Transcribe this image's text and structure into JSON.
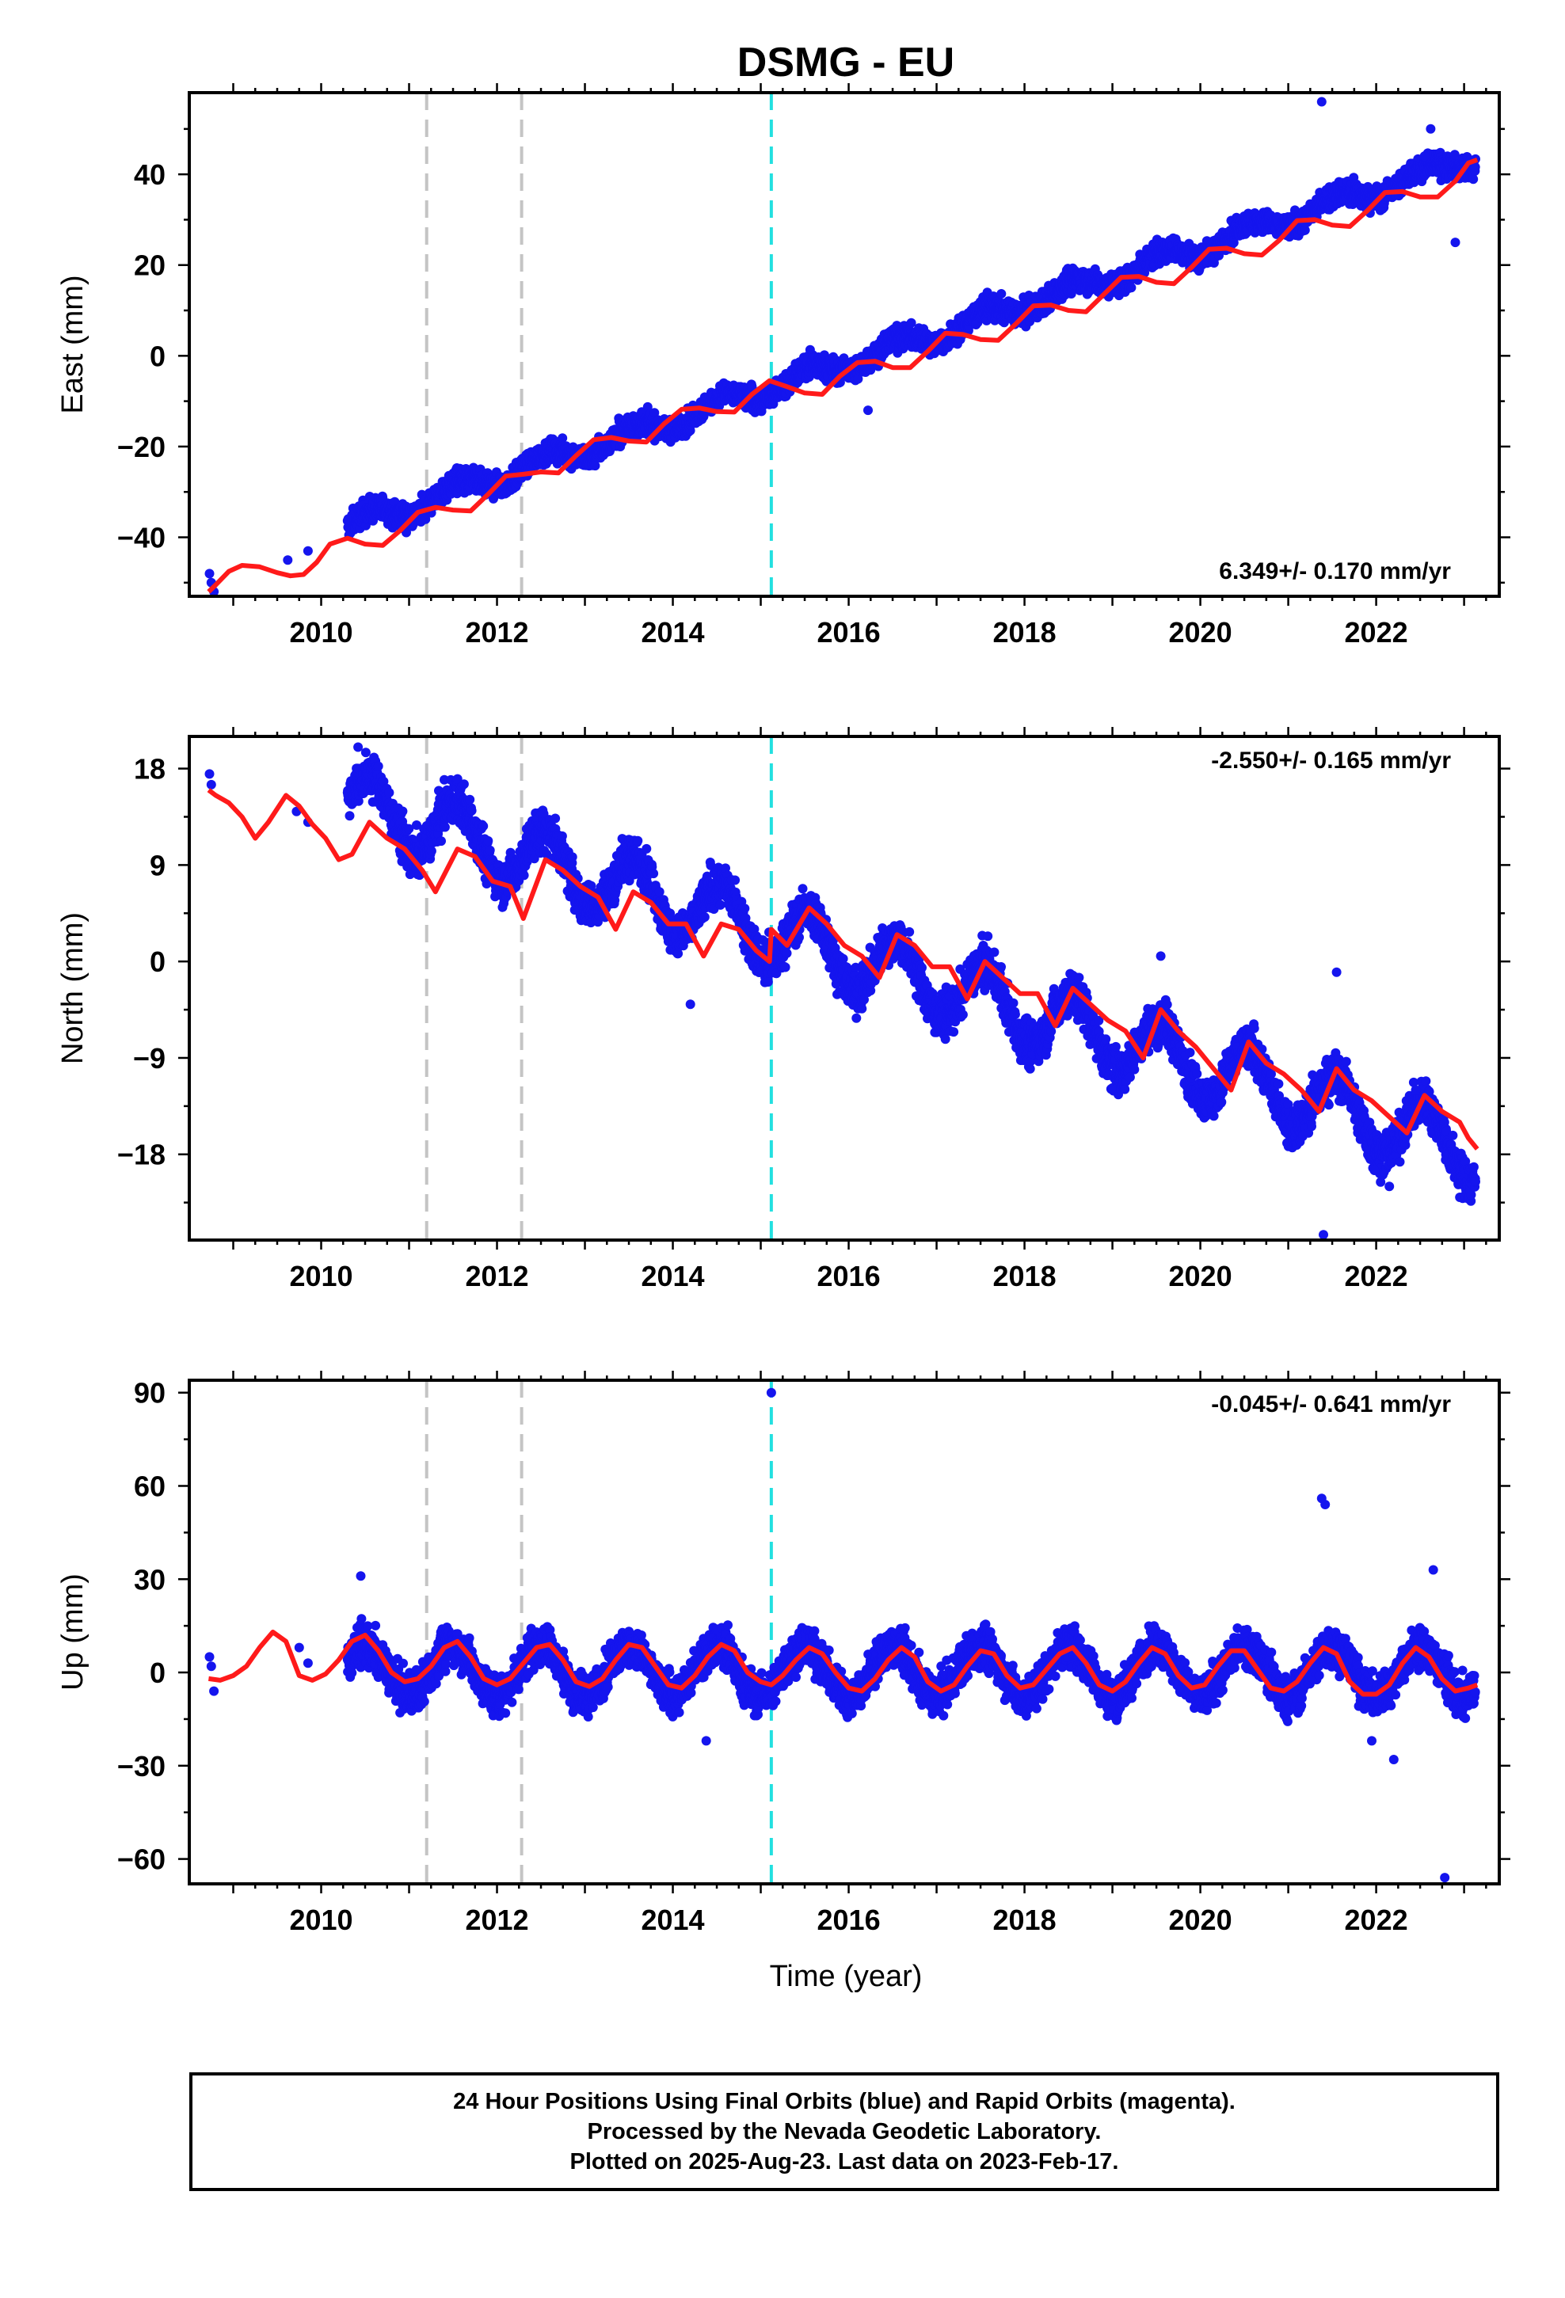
{
  "title": "DSMG - EU",
  "xlabel": "Time (year)",
  "footer": {
    "line1": "24 Hour Positions Using Final Orbits (blue) and Rapid Orbits (magenta).",
    "line2": "Processed by the Nevada Geodetic Laboratory.",
    "line3": "Plotted on 2025-Aug-23. Last data on 2023-Feb-17."
  },
  "chart_data": [
    {
      "type": "scatter",
      "name": "east",
      "ylabel": "East (mm)",
      "rate_label": "6.349+/- 0.170 mm/yr",
      "xlim": [
        2008.5,
        2023.4
      ],
      "ylim": [
        -53,
        58
      ],
      "xticks": [
        2010,
        2012,
        2014,
        2016,
        2018,
        2020,
        2022
      ],
      "yticks": [
        -40,
        -20,
        0,
        20,
        40
      ],
      "ytick_labels": [
        "−40",
        "−20",
        "0",
        "20",
        "40"
      ],
      "data_start": 2010.3,
      "trend": {
        "t0": 2016,
        "y0": -1.5,
        "rate": 6.349
      },
      "seasonal": {
        "amplitude": 2.0,
        "phase_year": 0.55
      },
      "scatter_noise": 1.8,
      "early_points": {
        "x": [
          2008.73,
          2008.75,
          2008.78,
          2009.62,
          2009.85
        ],
        "y": [
          -48,
          -50,
          -52,
          -45,
          -43
        ]
      },
      "outliers": {
        "x": [
          2021.38,
          2022.62,
          2022.9,
          2022.55,
          2016.22
        ],
        "y": [
          56,
          50,
          25,
          44,
          -12
        ]
      },
      "fit": {
        "x": [
          2008.72,
          2008.8,
          2008.95,
          2009.1,
          2009.3,
          2009.5,
          2009.65,
          2009.8,
          2009.95,
          2010.1,
          2010.3,
          2010.5,
          2010.7,
          2010.9,
          2011.1,
          2011.3,
          2011.5,
          2011.7,
          2011.9,
          2012.1,
          2012.3,
          2012.5,
          2012.7,
          2012.9,
          2013.1,
          2013.3,
          2013.5,
          2013.7,
          2013.9,
          2014.1,
          2014.3,
          2014.5,
          2014.7,
          2014.9,
          2015.1,
          2015.3,
          2015.5,
          2015.7,
          2015.9,
          2016.1,
          2016.3,
          2016.5,
          2016.7,
          2016.9,
          2017.1,
          2017.3,
          2017.5,
          2017.7,
          2017.9,
          2018.1,
          2018.3,
          2018.5,
          2018.7,
          2018.9,
          2019.1,
          2019.3,
          2019.5,
          2019.7,
          2019.9,
          2020.1,
          2020.3,
          2020.5,
          2020.7,
          2020.9,
          2021.1,
          2021.3,
          2021.5,
          2021.7,
          2021.9,
          2022.1,
          2022.3,
          2022.5,
          2022.7,
          2022.9,
          2023.05,
          2023.15
        ],
        "y": [
          -52,
          -50.5,
          -47.5,
          -46.2,
          -46.5,
          -47.8,
          -48.5,
          -48.2,
          -45.5,
          -41.5,
          -40.2,
          -41.5,
          -41.8,
          -38.5,
          -34.5,
          -33.4,
          -34,
          -34.2,
          -30.5,
          -26.5,
          -26.1,
          -25.6,
          -25.8,
          -22,
          -18.5,
          -18,
          -18.8,
          -19,
          -15,
          -11.8,
          -11.5,
          -12.3,
          -12.4,
          -8.5,
          -5.5,
          -6.8,
          -8.2,
          -8.5,
          -4.5,
          -1.5,
          -1.2,
          -2.6,
          -2.6,
          1,
          5,
          4.7,
          3.6,
          3.4,
          7,
          11,
          11.2,
          10,
          9.7,
          13.5,
          17.3,
          17.5,
          16.2,
          15.9,
          19.5,
          23.5,
          23.7,
          22.5,
          22.2,
          25.5,
          29.8,
          30,
          28.8,
          28.5,
          32,
          36,
          36.2,
          35,
          35,
          38.5,
          42.5,
          43.2
        ]
      },
      "vlines_gray": [
        2011.2,
        2012.28
      ],
      "vlines_cyan": [
        2015.12
      ]
    },
    {
      "type": "scatter",
      "name": "north",
      "ylabel": "North (mm)",
      "rate_label": "-2.550+/- 0.165 mm/yr",
      "xlim": [
        2008.5,
        2023.4
      ],
      "ylim": [
        -26,
        21
      ],
      "xticks": [
        2010,
        2012,
        2014,
        2016,
        2018,
        2020,
        2022
      ],
      "yticks": [
        -18,
        -9,
        0,
        9,
        18
      ],
      "ytick_labels": [
        "−18",
        "−9",
        "0",
        "9",
        "18"
      ],
      "data_start": 2010.3,
      "trend": {
        "t0": 2016,
        "y0": 0.5,
        "rate": -2.55
      },
      "seasonal": {
        "amplitude": 3.0,
        "phase_year": 0.55
      },
      "scatter_noise": 1.4,
      "early_points": {
        "x": [
          2008.73,
          2008.75,
          2009.72,
          2009.85
        ],
        "y": [
          17.5,
          16.5,
          14,
          13
        ]
      },
      "outliers": {
        "x": [
          2010.42,
          2019.55,
          2021.55,
          2021.4,
          2021.98,
          2022.15,
          2022.45,
          2014.2
        ],
        "y": [
          20,
          0.5,
          -1,
          -25.5,
          -19.5,
          -21,
          -12,
          -4
        ]
      },
      "fit": {
        "x": [
          2008.72,
          2008.8,
          2008.95,
          2009.1,
          2009.25,
          2009.4,
          2009.6,
          2009.75,
          2009.9,
          2010.05,
          2010.2,
          2010.35,
          2010.55,
          2010.75,
          2010.95,
          2011.15,
          2011.3,
          2011.55,
          2011.75,
          2011.95,
          2012.15,
          2012.3,
          2012.55,
          2012.75,
          2012.95,
          2013.15,
          2013.35,
          2013.55,
          2013.75,
          2013.95,
          2014.15,
          2014.35,
          2014.55,
          2014.75,
          2014.95,
          2015.1,
          2015.12,
          2015.3,
          2015.55,
          2015.75,
          2015.95,
          2016.15,
          2016.35,
          2016.55,
          2016.75,
          2016.95,
          2017.15,
          2017.35,
          2017.55,
          2017.75,
          2017.95,
          2018.15,
          2018.35,
          2018.55,
          2018.75,
          2018.95,
          2019.15,
          2019.35,
          2019.55,
          2019.75,
          2019.95,
          2020.15,
          2020.35,
          2020.55,
          2020.75,
          2020.95,
          2021.15,
          2021.35,
          2021.55,
          2021.75,
          2021.95,
          2022.15,
          2022.35,
          2022.55,
          2022.75,
          2022.95,
          2023.05,
          2023.15
        ],
        "y": [
          16,
          15.5,
          14.8,
          13.5,
          11.5,
          13,
          15.5,
          14.5,
          12.8,
          11.5,
          9.5,
          10,
          13,
          11.5,
          10.5,
          8.5,
          6.5,
          10.5,
          9.8,
          7.5,
          7,
          4,
          9.5,
          8.5,
          7,
          6,
          3,
          6.5,
          5.5,
          3.5,
          3.5,
          0.5,
          3.5,
          3,
          1,
          0,
          3,
          1.5,
          5,
          3.5,
          1.5,
          0.5,
          -1.5,
          2.5,
          1.5,
          -0.5,
          -0.5,
          -3.5,
          0,
          -1.5,
          -3,
          -3,
          -6,
          -2.5,
          -4,
          -5.5,
          -6.5,
          -9,
          -4.5,
          -6.5,
          -8,
          -10,
          -12,
          -7.5,
          -9.5,
          -10.5,
          -12,
          -14,
          -10,
          -12,
          -13,
          -14.5,
          -16,
          -12.5,
          -14,
          -15,
          -16.5,
          -17.5
        ]
      },
      "vlines_gray": [
        2011.2,
        2012.28
      ],
      "vlines_cyan": [
        2015.12
      ]
    },
    {
      "type": "scatter",
      "name": "up",
      "ylabel": "Up (mm)",
      "rate_label": "-0.045+/- 0.641 mm/yr",
      "xlim": [
        2008.5,
        2023.4
      ],
      "ylim": [
        -68,
        94
      ],
      "xticks": [
        2010,
        2012,
        2014,
        2016,
        2018,
        2020,
        2022
      ],
      "yticks": [
        -60,
        -30,
        0,
        30,
        60,
        90
      ],
      "ytick_labels": [
        "−60",
        "−30",
        "0",
        "30",
        "60",
        "90"
      ],
      "data_start": 2010.3,
      "trend": {
        "t0": 2016,
        "y0": 0.5,
        "rate": -0.045
      },
      "seasonal": {
        "amplitude": 8.0,
        "phase_year": 0.5
      },
      "scatter_noise": 4.5,
      "early_points": {
        "x": [
          2008.73,
          2008.75,
          2008.78,
          2009.75,
          2009.85
        ],
        "y": [
          5,
          2,
          -6,
          8,
          3
        ]
      },
      "outliers": {
        "x": [
          2015.12,
          2021.38,
          2021.42,
          2022.78,
          2014.38,
          2022.2,
          2021.95,
          2022.65,
          2010.45
        ],
        "y": [
          90,
          56,
          54,
          -66,
          -22,
          -28,
          -22,
          33,
          31
        ]
      },
      "fit": {
        "x": [
          2008.72,
          2008.85,
          2009.0,
          2009.15,
          2009.3,
          2009.45,
          2009.6,
          2009.75,
          2009.9,
          2010.05,
          2010.2,
          2010.35,
          2010.5,
          2010.65,
          2010.8,
          2010.95,
          2011.1,
          2011.25,
          2011.4,
          2011.55,
          2011.7,
          2011.85,
          2012.0,
          2012.15,
          2012.3,
          2012.45,
          2012.6,
          2012.75,
          2012.9,
          2013.05,
          2013.2,
          2013.35,
          2013.5,
          2013.65,
          2013.8,
          2013.95,
          2014.1,
          2014.25,
          2014.4,
          2014.55,
          2014.7,
          2014.85,
          2015.0,
          2015.12,
          2015.25,
          2015.4,
          2015.55,
          2015.7,
          2015.85,
          2016.0,
          2016.15,
          2016.3,
          2016.45,
          2016.6,
          2016.75,
          2016.9,
          2017.05,
          2017.2,
          2017.35,
          2017.5,
          2017.65,
          2017.8,
          2017.95,
          2018.1,
          2018.25,
          2018.4,
          2018.55,
          2018.7,
          2018.85,
          2019.0,
          2019.15,
          2019.3,
          2019.45,
          2019.6,
          2019.75,
          2019.9,
          2020.05,
          2020.2,
          2020.35,
          2020.5,
          2020.65,
          2020.8,
          2020.95,
          2021.1,
          2021.25,
          2021.4,
          2021.55,
          2021.7,
          2021.85,
          2022.0,
          2022.15,
          2022.3,
          2022.45,
          2022.6,
          2022.75,
          2022.9,
          2023.05,
          2023.15
        ],
        "y": [
          -2,
          -2.5,
          -1,
          2,
          8,
          13,
          10,
          -1,
          -2.5,
          -0.5,
          4,
          10,
          12,
          7,
          0,
          -3,
          -2,
          2,
          8,
          10,
          5,
          -2,
          -4,
          -2,
          3,
          8,
          9,
          4,
          -3,
          -4.5,
          -2,
          4,
          9,
          8,
          2,
          -4,
          -5,
          -1,
          5,
          9,
          7,
          0,
          -3,
          -4,
          -1,
          4,
          8,
          6,
          0,
          -5,
          -6,
          -2,
          4,
          8,
          5,
          -3,
          -6,
          -4,
          2,
          7,
          6,
          -1,
          -5,
          -4,
          1,
          6,
          8,
          3,
          -4,
          -6,
          -3,
          3,
          8,
          6,
          -1,
          -5,
          -4,
          2,
          7,
          7,
          1,
          -5,
          -6,
          -3,
          3,
          8,
          6,
          -3,
          -7,
          -7,
          -4,
          3,
          8,
          5,
          -2,
          -6,
          -5,
          -4
        ]
      },
      "vlines_gray": [
        2011.2,
        2012.28
      ],
      "vlines_cyan": [
        2015.12
      ]
    }
  ]
}
